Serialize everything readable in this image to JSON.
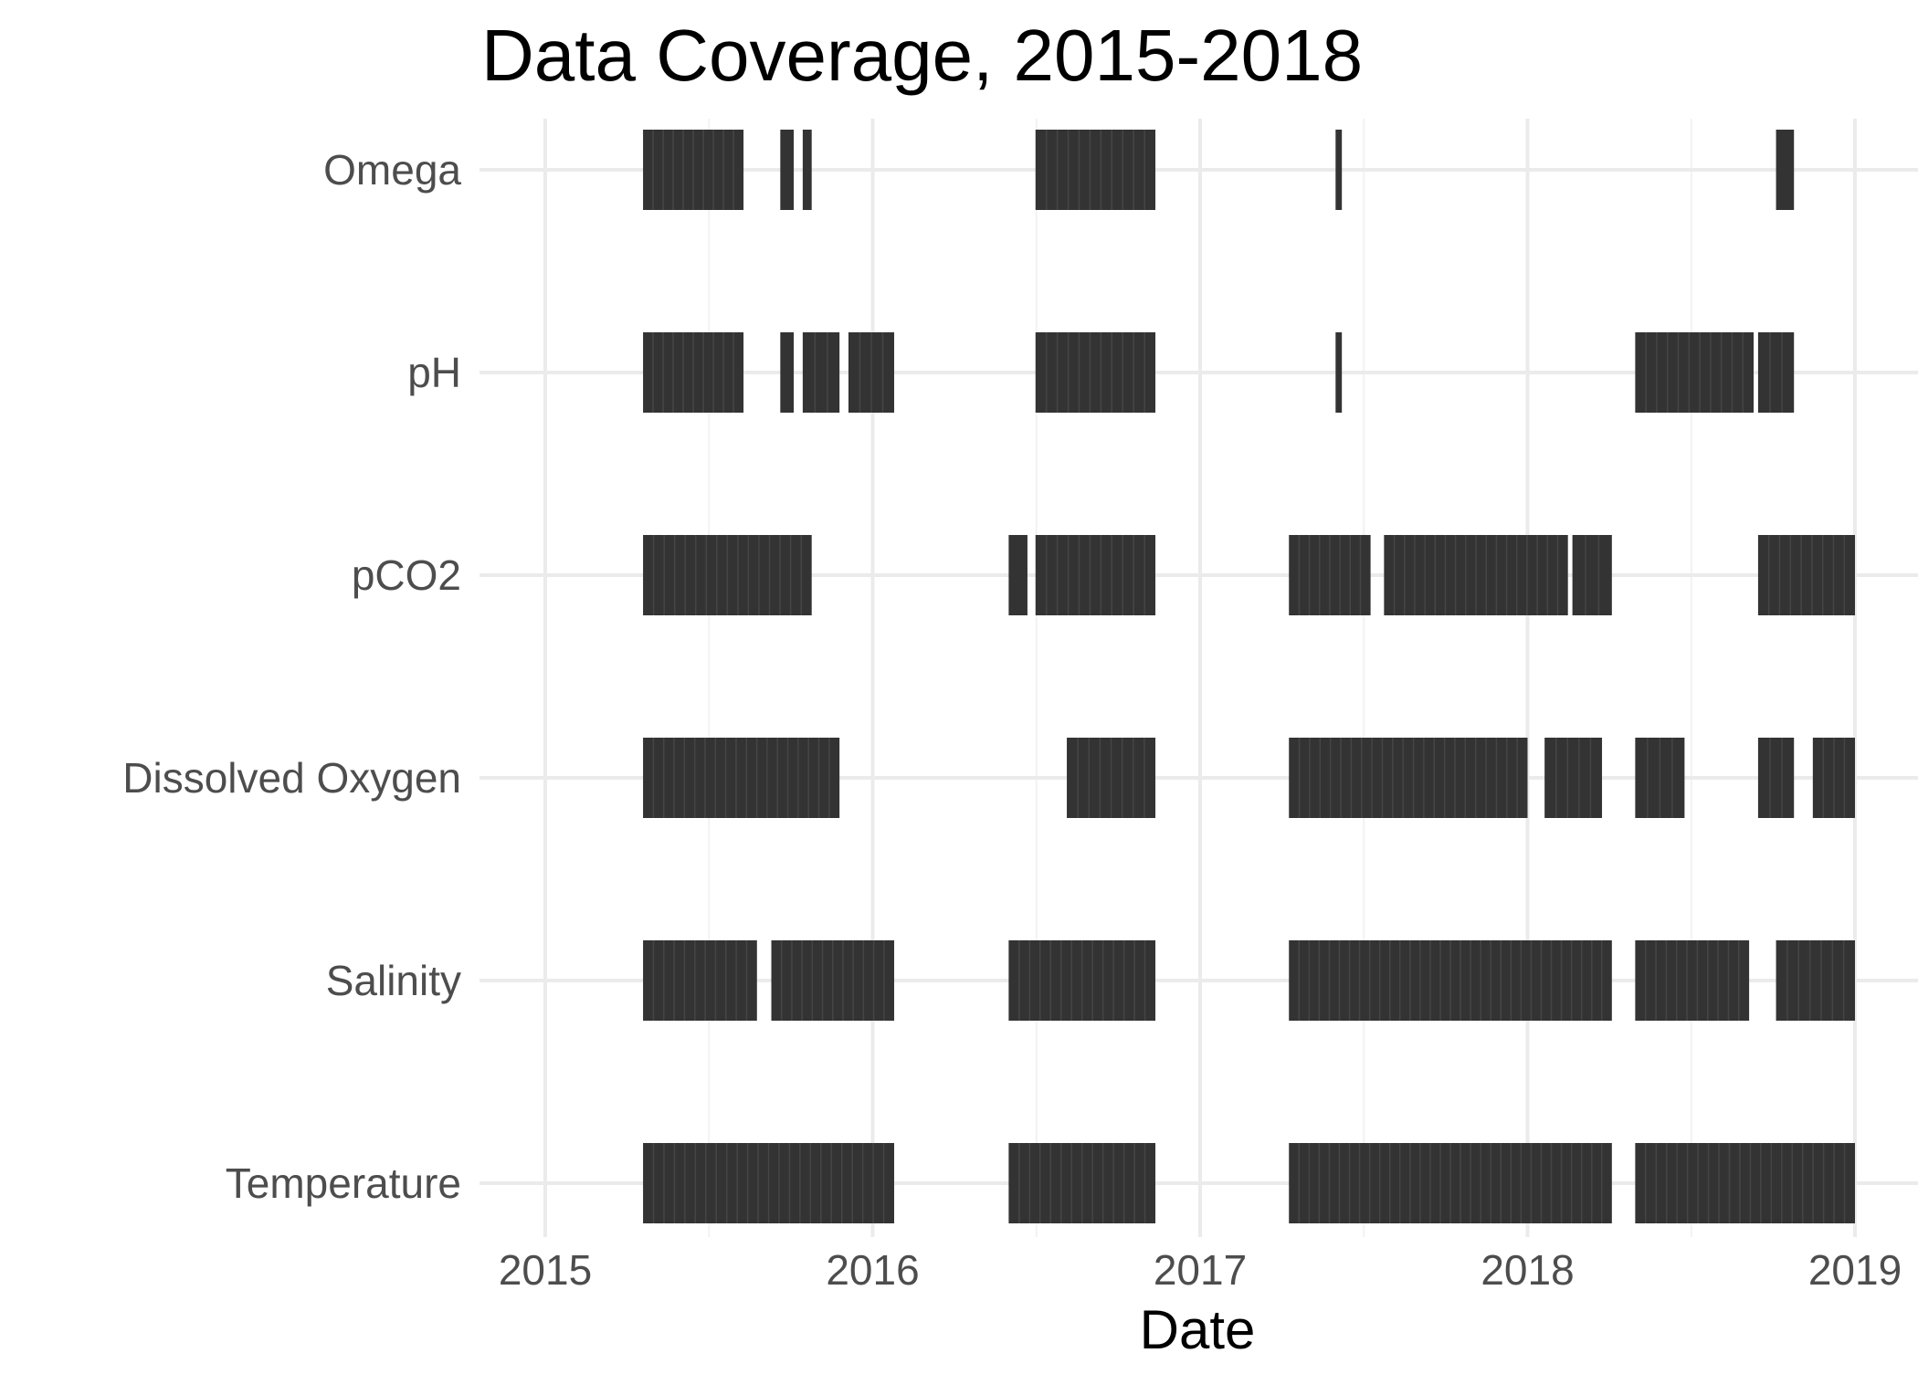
{
  "chart_data": {
    "type": "timeline",
    "title": "Data Coverage, 2015-2018",
    "xlabel": "Date",
    "ylabel": "",
    "x_ticks": [
      "2015",
      "2016",
      "2017",
      "2018",
      "2019"
    ],
    "xlim": [
      "2014-11-20",
      "2019-03-01"
    ],
    "grid": true,
    "legend": "none",
    "bar_color": "#333333",
    "series": [
      {
        "name": "Omega",
        "segments": [
          [
            "2015-04-20",
            "2015-08-10"
          ],
          [
            "2015-09-20",
            "2015-10-05"
          ],
          [
            "2015-10-15",
            "2015-10-25"
          ],
          [
            "2016-07-01",
            "2016-11-12"
          ],
          [
            "2017-06-01",
            "2017-06-08"
          ],
          [
            "2018-10-05",
            "2018-10-25"
          ]
        ]
      },
      {
        "name": "pH",
        "segments": [
          [
            "2015-04-20",
            "2015-08-10"
          ],
          [
            "2015-09-20",
            "2015-10-05"
          ],
          [
            "2015-10-15",
            "2015-11-25"
          ],
          [
            "2015-12-05",
            "2016-01-25"
          ],
          [
            "2016-07-01",
            "2016-11-12"
          ],
          [
            "2017-06-01",
            "2017-06-08"
          ],
          [
            "2018-05-01",
            "2018-09-10"
          ],
          [
            "2018-09-15",
            "2018-10-25"
          ]
        ]
      },
      {
        "name": "pCO2",
        "segments": [
          [
            "2015-04-20",
            "2015-10-25"
          ],
          [
            "2016-06-01",
            "2016-06-22"
          ],
          [
            "2016-07-01",
            "2016-11-12"
          ],
          [
            "2017-04-10",
            "2017-07-10"
          ],
          [
            "2017-07-25",
            "2018-02-15"
          ],
          [
            "2018-02-20",
            "2018-04-05"
          ],
          [
            "2018-09-15",
            "2019-01-01"
          ]
        ]
      },
      {
        "name": "Dissolved Oxygen",
        "segments": [
          [
            "2015-04-20",
            "2015-11-25"
          ],
          [
            "2016-08-05",
            "2016-11-12"
          ],
          [
            "2017-04-10",
            "2018-01-01"
          ],
          [
            "2018-01-20",
            "2018-03-25"
          ],
          [
            "2018-05-01",
            "2018-06-25"
          ],
          [
            "2018-09-15",
            "2018-10-25"
          ],
          [
            "2018-11-15",
            "2019-01-01"
          ]
        ]
      },
      {
        "name": "Salinity",
        "segments": [
          [
            "2015-04-20",
            "2015-08-25"
          ],
          [
            "2015-09-10",
            "2016-01-25"
          ],
          [
            "2016-06-01",
            "2016-11-12"
          ],
          [
            "2017-04-10",
            "2018-04-05"
          ],
          [
            "2018-05-01",
            "2018-09-05"
          ],
          [
            "2018-10-05",
            "2019-01-01"
          ]
        ]
      },
      {
        "name": "Temperature",
        "segments": [
          [
            "2015-04-20",
            "2016-01-25"
          ],
          [
            "2016-06-01",
            "2016-11-12"
          ],
          [
            "2017-04-10",
            "2018-04-05"
          ],
          [
            "2018-05-01",
            "2019-01-01"
          ]
        ]
      }
    ]
  }
}
